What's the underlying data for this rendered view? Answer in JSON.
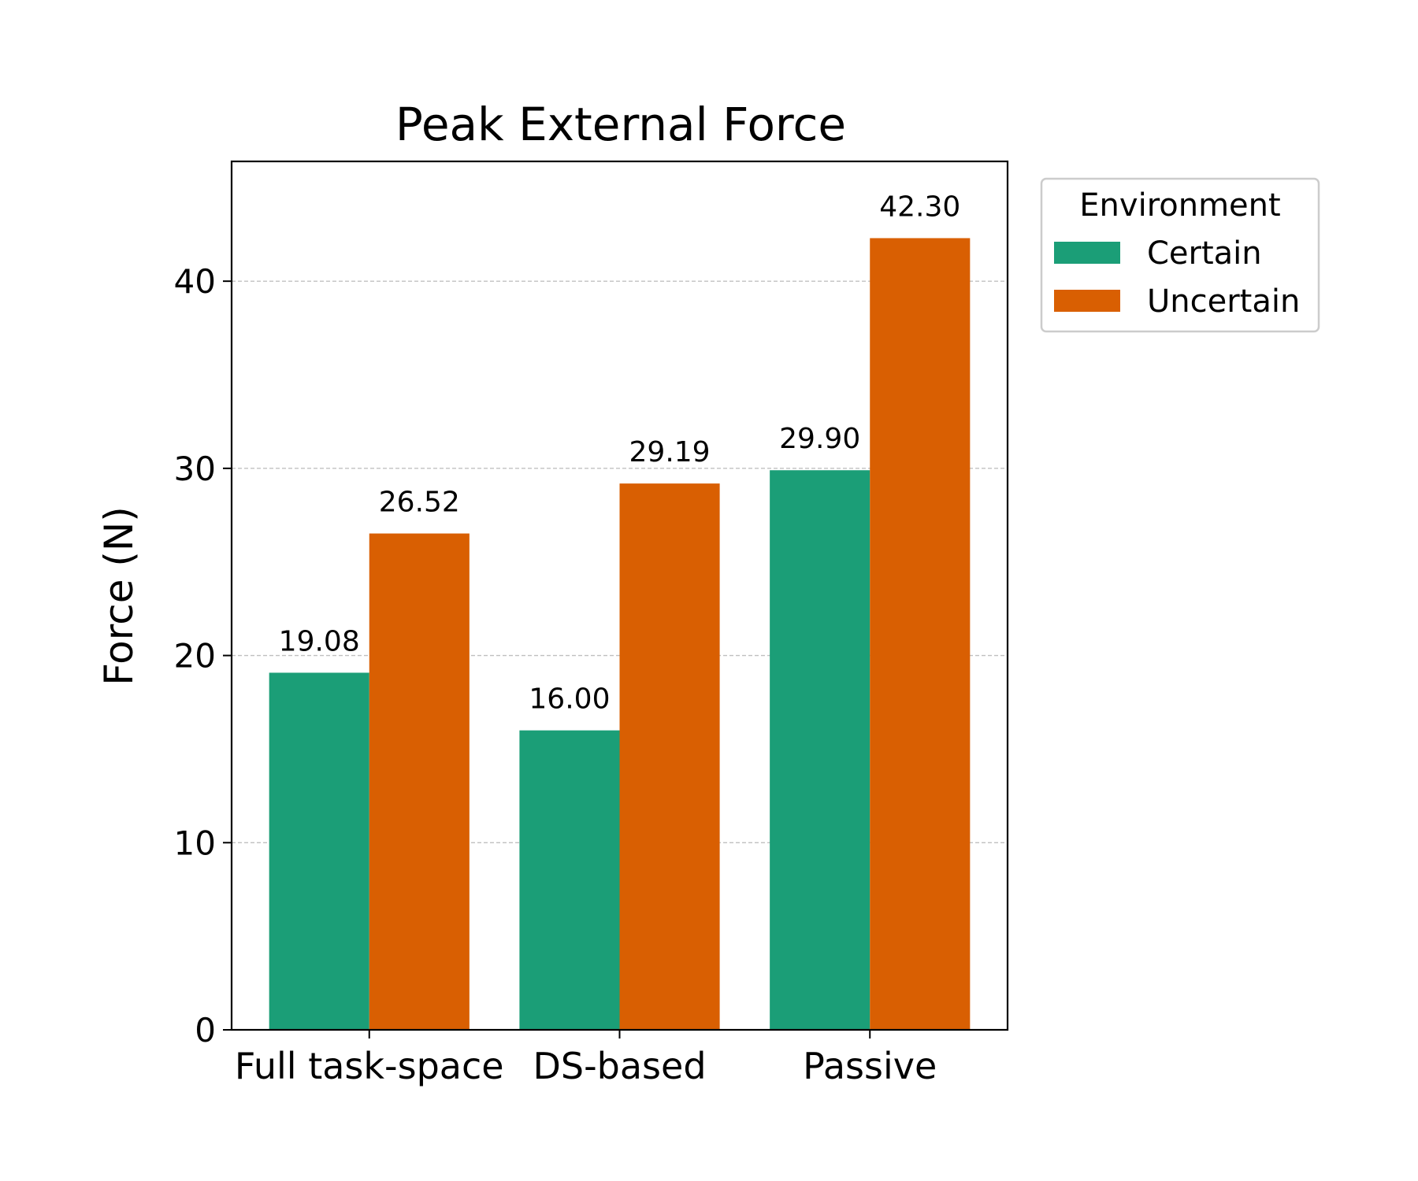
{
  "chart_data": {
    "type": "bar",
    "title": "Peak External Force",
    "xlabel": "",
    "ylabel": "Force (N)",
    "categories": [
      "Full task-space",
      "DS-based",
      "Passive"
    ],
    "series": [
      {
        "name": "Certain",
        "color": "#1b9e77",
        "values": [
          19.08,
          16.0,
          29.9
        ],
        "labels": [
          "19.08",
          "16.00",
          "29.90"
        ]
      },
      {
        "name": "Uncertain",
        "color": "#d95f02",
        "values": [
          26.52,
          29.19,
          42.3
        ],
        "labels": [
          "26.52",
          "29.19",
          "42.30"
        ]
      }
    ],
    "ylim": [
      0,
      46.4
    ],
    "yticks": [
      "0",
      "10",
      "20",
      "30",
      "40"
    ],
    "grid": "y-dashed",
    "legend": {
      "title": "Environment",
      "placement": "outside-right-top"
    }
  }
}
